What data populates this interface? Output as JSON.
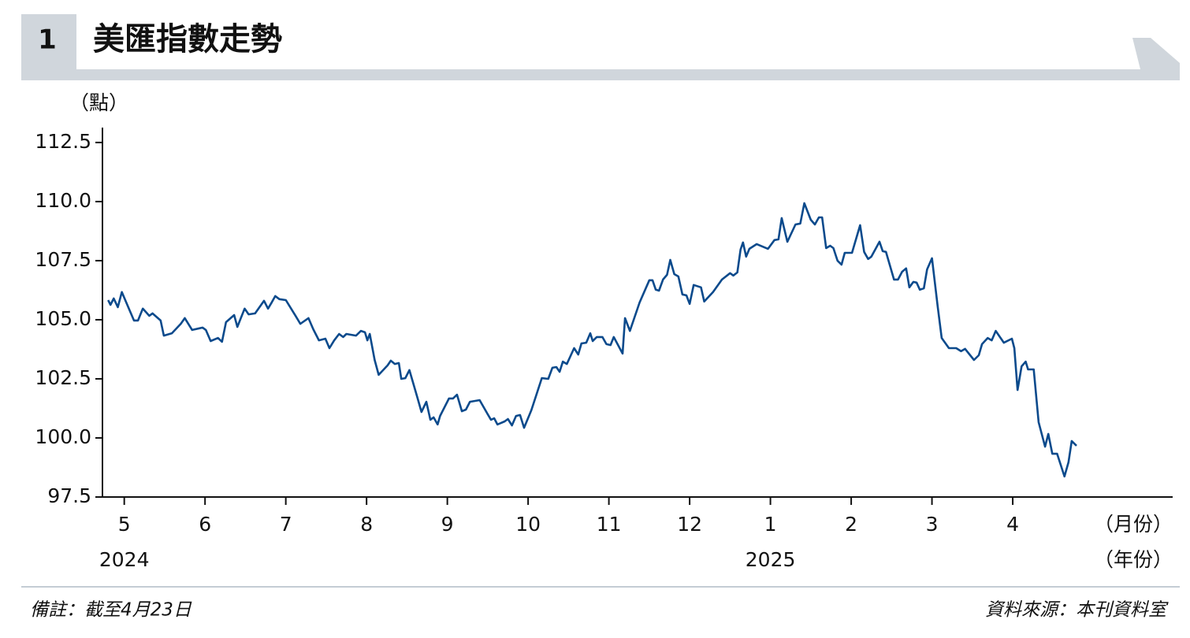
{
  "chart_data": {
    "type": "line",
    "badge": "1",
    "title": "美匯指數走勢",
    "y_unit": "（點）",
    "x_unit": "（月份）",
    "x_group_unit": "（年份）",
    "note": "備註：截至4月23日",
    "source": "資料來源：本刊資料室",
    "color": "#0b4a8c",
    "xlim": [
      4.73,
      17.98
    ],
    "ylim": [
      97.5,
      113.13
    ],
    "xticks": [
      5,
      6,
      7,
      8,
      9,
      10,
      11,
      12,
      {
        "value": 13,
        "label": "1"
      },
      {
        "value": 14,
        "label": "2"
      },
      {
        "value": 15,
        "label": "3"
      },
      {
        "value": 16,
        "label": "4"
      }
    ],
    "x_groups": [
      {
        "value": 5,
        "label": "2024"
      },
      {
        "value": 13,
        "label": "2025"
      }
    ],
    "yticks": [
      97.5,
      {
        "value": 100,
        "label": "100.0"
      },
      102.5,
      {
        "value": 105,
        "label": "105.0"
      },
      107.5,
      {
        "value": 110,
        "label": "110.0"
      },
      112.5
    ],
    "x": [
      4.8,
      4.83,
      4.87,
      4.92,
      4.97,
      5.07,
      5.12,
      5.17,
      5.23,
      5.31,
      5.35,
      5.45,
      5.49,
      5.59,
      5.7,
      5.75,
      5.84,
      5.97,
      6.01,
      6.07,
      6.16,
      6.21,
      6.26,
      6.36,
      6.4,
      6.49,
      6.54,
      6.62,
      6.73,
      6.78,
      6.82,
      6.87,
      6.92,
      7.0,
      7.12,
      7.18,
      7.28,
      7.34,
      7.41,
      7.49,
      7.54,
      7.6,
      7.66,
      7.71,
      7.75,
      7.87,
      7.93,
      7.98,
      8.01,
      8.04,
      8.1,
      8.15,
      8.26,
      8.3,
      8.35,
      8.4,
      8.43,
      8.48,
      8.53,
      8.63,
      8.68,
      8.74,
      8.79,
      8.83,
      8.88,
      8.91,
      9.02,
      9.07,
      9.12,
      9.18,
      9.23,
      9.28,
      9.4,
      9.5,
      9.54,
      9.58,
      9.62,
      9.71,
      9.75,
      9.8,
      9.85,
      9.9,
      9.95,
      10.04,
      10.17,
      10.25,
      10.3,
      10.35,
      10.39,
      10.43,
      10.48,
      10.57,
      10.62,
      10.66,
      10.72,
      10.77,
      10.8,
      10.85,
      10.92,
      10.97,
      11.02,
      11.06,
      11.17,
      11.2,
      11.26,
      11.38,
      11.5,
      11.54,
      11.58,
      11.62,
      11.67,
      11.72,
      11.76,
      11.81,
      11.86,
      11.91,
      11.96,
      12.0,
      12.05,
      12.14,
      12.18,
      12.29,
      12.4,
      12.5,
      12.54,
      12.59,
      12.63,
      12.66,
      12.7,
      12.74,
      12.83,
      12.97,
      13.05,
      13.1,
      13.14,
      13.21,
      13.31,
      13.37,
      13.42,
      13.5,
      13.55,
      13.6,
      13.64,
      13.69,
      13.74,
      13.78,
      13.83,
      13.88,
      13.92,
      14.01,
      14.11,
      14.16,
      14.21,
      14.25,
      14.35,
      14.39,
      14.43,
      14.53,
      14.58,
      14.63,
      14.68,
      14.72,
      14.77,
      14.81,
      14.85,
      14.9,
      14.94,
      15.0,
      15.07,
      15.12,
      15.21,
      15.3,
      15.36,
      15.41,
      15.52,
      15.58,
      15.62,
      15.69,
      15.74,
      15.79,
      15.89,
      15.99,
      16.02,
      16.06,
      16.11,
      16.16,
      16.19,
      16.26,
      16.32,
      16.4,
      16.44,
      16.49,
      16.55,
      16.64,
      16.69,
      16.73,
      16.79
    ],
    "values": [
      105.83,
      105.63,
      105.9,
      105.53,
      106.17,
      105.37,
      104.97,
      104.97,
      105.47,
      105.17,
      105.27,
      104.97,
      104.33,
      104.43,
      104.83,
      105.07,
      104.57,
      104.67,
      104.57,
      104.1,
      104.23,
      104.07,
      104.9,
      105.2,
      104.7,
      105.47,
      105.23,
      105.27,
      105.8,
      105.47,
      105.7,
      106.0,
      105.87,
      105.83,
      105.17,
      104.83,
      105.07,
      104.6,
      104.13,
      104.2,
      103.8,
      104.13,
      104.4,
      104.27,
      104.4,
      104.33,
      104.53,
      104.47,
      104.13,
      104.4,
      103.3,
      102.67,
      103.07,
      103.27,
      103.13,
      103.17,
      102.5,
      102.53,
      102.87,
      101.7,
      101.1,
      101.53,
      100.77,
      100.87,
      100.57,
      100.93,
      101.67,
      101.67,
      101.83,
      101.13,
      101.2,
      101.53,
      101.6,
      101.0,
      100.77,
      100.83,
      100.57,
      100.7,
      100.8,
      100.53,
      100.93,
      100.97,
      100.43,
      101.17,
      102.53,
      102.5,
      102.97,
      103.0,
      102.8,
      103.23,
      103.13,
      103.8,
      103.53,
      104.0,
      104.03,
      104.43,
      104.1,
      104.27,
      104.27,
      103.97,
      103.93,
      104.27,
      103.57,
      105.07,
      104.53,
      105.73,
      106.67,
      106.67,
      106.27,
      106.23,
      106.7,
      106.9,
      107.53,
      106.93,
      106.83,
      106.07,
      106.03,
      105.67,
      106.47,
      106.37,
      105.77,
      106.17,
      106.7,
      106.97,
      106.87,
      107.0,
      107.97,
      108.27,
      107.67,
      108.0,
      108.2,
      108.0,
      108.37,
      108.4,
      109.3,
      108.3,
      109.03,
      109.07,
      109.93,
      109.23,
      109.03,
      109.33,
      109.33,
      108.03,
      108.13,
      108.03,
      107.5,
      107.33,
      107.83,
      107.83,
      109.0,
      107.87,
      107.57,
      107.67,
      108.3,
      107.9,
      107.87,
      106.7,
      106.7,
      107.03,
      107.17,
      106.37,
      106.6,
      106.57,
      106.27,
      106.33,
      107.13,
      107.6,
      105.57,
      104.23,
      103.8,
      103.8,
      103.67,
      103.77,
      103.3,
      103.5,
      103.97,
      104.23,
      104.13,
      104.53,
      104.03,
      104.2,
      103.8,
      102.03,
      103.03,
      103.23,
      102.9,
      102.9,
      100.67,
      99.63,
      100.17,
      99.33,
      99.33,
      98.37,
      98.97,
      99.87,
      99.67
    ]
  }
}
